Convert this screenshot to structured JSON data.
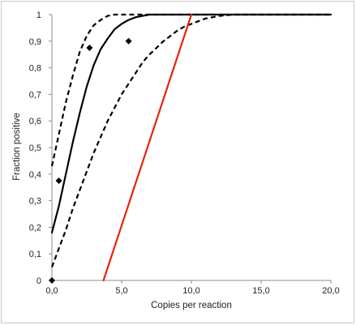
{
  "chart_data": {
    "type": "line",
    "xlabel": "Copies per reaction",
    "ylabel": "Fraction positive",
    "xlim": [
      0,
      20
    ],
    "ylim": [
      0,
      1
    ],
    "x_ticks": [
      "0,0",
      "5,0",
      "10,0",
      "15,0",
      "20,0"
    ],
    "y_ticks": [
      "0",
      "0,1",
      "0,2",
      "0,3",
      "0,4",
      "0,5",
      "0,6",
      "0,7",
      "0,8",
      "0,9",
      "1"
    ],
    "grid": false,
    "legend": "none",
    "series": [
      {
        "style": "solid",
        "color": "#000000",
        "x": [
          0,
          0.5,
          1,
          1.5,
          2,
          2.5,
          3,
          3.5,
          4,
          4.5,
          5,
          5.5,
          6,
          6.5,
          7,
          8,
          10,
          12,
          15,
          20
        ],
        "y": [
          0.18,
          0.28,
          0.4,
          0.52,
          0.63,
          0.73,
          0.81,
          0.87,
          0.91,
          0.945,
          0.965,
          0.98,
          0.99,
          0.995,
          1.0,
          1.0,
          1.0,
          1.0,
          1.0,
          1.0
        ]
      },
      {
        "style": "dashed",
        "color": "#000000",
        "x": [
          0,
          0.5,
          1,
          1.5,
          2,
          2.5,
          3,
          3.5,
          4,
          4.5,
          5,
          5.5,
          6,
          7,
          10,
          15,
          20
        ],
        "y": [
          0.43,
          0.55,
          0.67,
          0.77,
          0.86,
          0.92,
          0.96,
          0.98,
          0.995,
          1.0,
          1.0,
          1.0,
          1.0,
          1.0,
          1.0,
          1.0,
          1.0
        ]
      },
      {
        "style": "dashed",
        "color": "#000000",
        "x": [
          0,
          0.5,
          1,
          1.5,
          2,
          2.5,
          3,
          3.5,
          4,
          4.5,
          5,
          5.5,
          6,
          6.5,
          7,
          7.5,
          8,
          8.5,
          9,
          9.5,
          10,
          10.5,
          11,
          11.5,
          12,
          13,
          15,
          20
        ],
        "y": [
          0.05,
          0.12,
          0.19,
          0.27,
          0.34,
          0.41,
          0.48,
          0.54,
          0.6,
          0.65,
          0.7,
          0.74,
          0.78,
          0.82,
          0.85,
          0.875,
          0.9,
          0.92,
          0.94,
          0.955,
          0.965,
          0.975,
          0.985,
          0.99,
          0.995,
          1.0,
          1.0,
          1.0
        ]
      },
      {
        "style": "solid",
        "color": "#e8220c",
        "x": [
          3.7,
          10.0
        ],
        "y": [
          0.0,
          1.0
        ]
      }
    ],
    "points": {
      "marker": "diamond",
      "color": "#000000",
      "x": [
        0.0,
        0.5,
        2.7,
        5.5
      ],
      "y": [
        0.0,
        0.375,
        0.875,
        0.9
      ]
    }
  }
}
